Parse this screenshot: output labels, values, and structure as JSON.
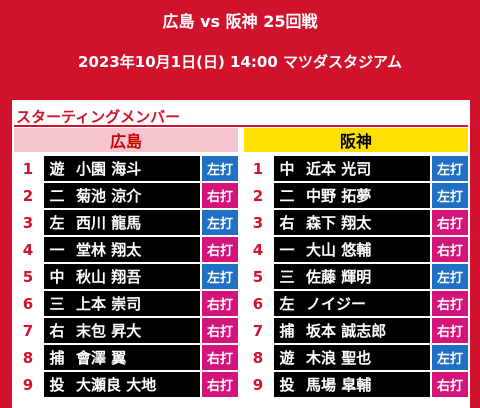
{
  "header": {
    "title": "広島 vs 阪神 25回戦",
    "subtitle": "2023年10月1日(日) 14:00 マツダスタジアム"
  },
  "section_title": "スターティングメンバー",
  "bats_colors": {
    "左打": "#1f6fc4",
    "右打": "#d4147a"
  },
  "teams": [
    {
      "name": "広島",
      "header_color": "#f5c6cd",
      "players": [
        {
          "order": 1,
          "position": "遊",
          "name": "小園 海斗",
          "bats": "左打"
        },
        {
          "order": 2,
          "position": "二",
          "name": "菊池 涼介",
          "bats": "右打"
        },
        {
          "order": 3,
          "position": "左",
          "name": "西川 龍馬",
          "bats": "左打"
        },
        {
          "order": 4,
          "position": "一",
          "name": "堂林 翔太",
          "bats": "右打"
        },
        {
          "order": 5,
          "position": "中",
          "name": "秋山 翔吾",
          "bats": "左打"
        },
        {
          "order": 6,
          "position": "三",
          "name": "上本 崇司",
          "bats": "右打"
        },
        {
          "order": 7,
          "position": "右",
          "name": "末包 昇大",
          "bats": "右打"
        },
        {
          "order": 8,
          "position": "捕",
          "name": "會澤 翼",
          "bats": "右打"
        },
        {
          "order": 9,
          "position": "投",
          "name": "大瀬良 大地",
          "bats": "右打"
        }
      ]
    },
    {
      "name": "阪神",
      "header_color": "#ffe100",
      "players": [
        {
          "order": 1,
          "position": "中",
          "name": "近本 光司",
          "bats": "左打"
        },
        {
          "order": 2,
          "position": "二",
          "name": "中野 拓夢",
          "bats": "左打"
        },
        {
          "order": 3,
          "position": "右",
          "name": "森下 翔太",
          "bats": "右打"
        },
        {
          "order": 4,
          "position": "一",
          "name": "大山 悠輔",
          "bats": "右打"
        },
        {
          "order": 5,
          "position": "三",
          "name": "佐藤 輝明",
          "bats": "左打"
        },
        {
          "order": 6,
          "position": "左",
          "name": "ノイジー",
          "bats": "右打"
        },
        {
          "order": 7,
          "position": "捕",
          "name": "坂本 誠志郎",
          "bats": "右打"
        },
        {
          "order": 8,
          "position": "遊",
          "name": "木浪 聖也",
          "bats": "左打"
        },
        {
          "order": 9,
          "position": "投",
          "name": "馬場 皐輔",
          "bats": "右打"
        }
      ]
    }
  ]
}
